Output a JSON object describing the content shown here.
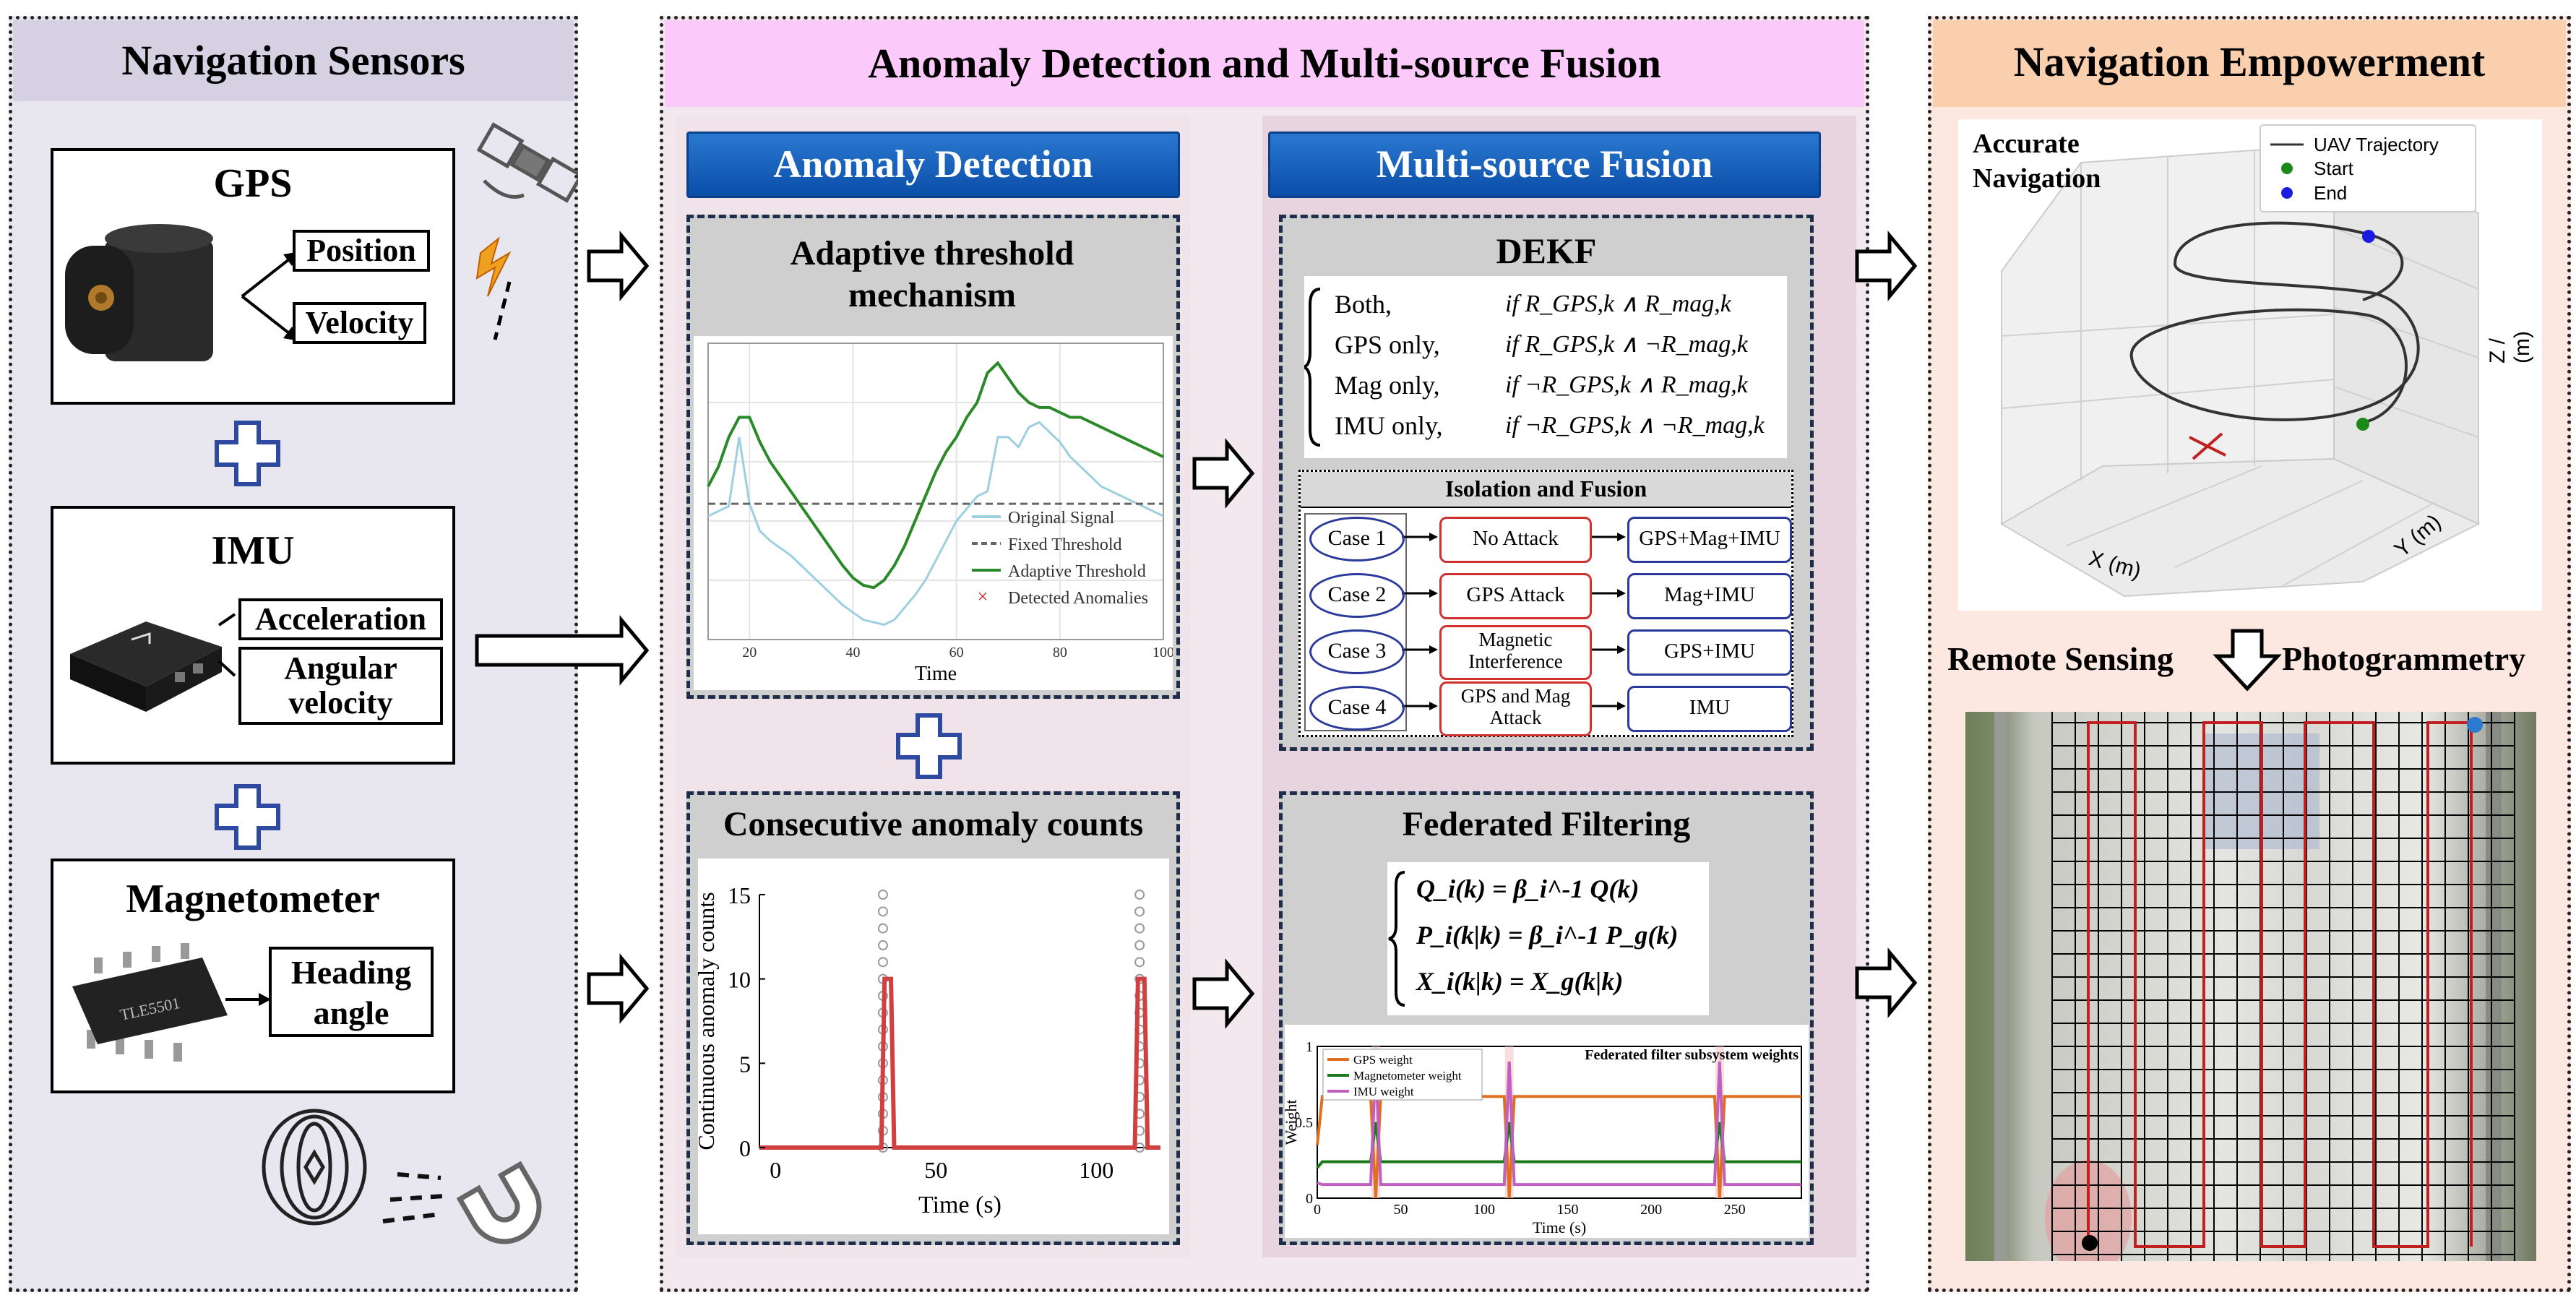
{
  "sensors": {
    "title": "Navigation Sensors",
    "gps": {
      "title": "GPS",
      "outputs": [
        "Position",
        "Velocity"
      ]
    },
    "imu": {
      "title": "IMU",
      "outputs": [
        "Acceleration",
        "Angular velocity"
      ]
    },
    "mag": {
      "title": "Magnetometer",
      "outputs": [
        "Heading angle"
      ],
      "chip_label": "TLE5501"
    }
  },
  "middle": {
    "title": "Anomaly Detection and Multi-source Fusion",
    "anomaly": {
      "header": "Anomaly Detection",
      "adaptive": {
        "title": "Adaptive threshold mechanism",
        "legend": [
          "Original Signal",
          "Fixed Threshold",
          "Adaptive Threshold",
          "Detected Anomalies"
        ],
        "xlabel": "Time",
        "xticks": [
          "20",
          "40",
          "60",
          "80",
          "100"
        ]
      },
      "consecutive": {
        "title": "Consecutive anomaly counts",
        "ylabel": "Continuous anomaly counts",
        "xlabel": "Time (s)",
        "yticks": [
          "0",
          "5",
          "10",
          "15"
        ],
        "xticks": [
          "0",
          "50",
          "100"
        ]
      }
    },
    "fusion": {
      "header": "Multi-source Fusion",
      "dekf": {
        "title": "DEKF",
        "cases": [
          {
            "label": "Both,",
            "cond": "if R_GPS,k ∧ R_mag,k"
          },
          {
            "label": "GPS only,",
            "cond": "if R_GPS,k ∧ ¬R_mag,k"
          },
          {
            "label": "Mag only,",
            "cond": "if ¬R_GPS,k ∧ R_mag,k"
          },
          {
            "label": "IMU only,",
            "cond": "if ¬R_GPS,k ∧ ¬R_mag,k"
          }
        ]
      },
      "isolation": {
        "title": "Isolation and Fusion",
        "rows": [
          {
            "case": "Case 1",
            "attack": "No Attack",
            "sources": "GPS+Mag+IMU"
          },
          {
            "case": "Case 2",
            "attack": "GPS Attack",
            "sources": "Mag+IMU"
          },
          {
            "case": "Case 3",
            "attack": "Magnetic Interference",
            "sources": "GPS+IMU"
          },
          {
            "case": "Case 4",
            "attack": "GPS and Mag Attack",
            "sources": "IMU"
          }
        ]
      },
      "federated": {
        "title": "Federated Filtering",
        "equations": [
          "Q_i(k) = β_i^-1 Q(k)",
          "P_i(k|k) = β_i^-1 P_g(k)",
          "X_i(k|k) = X_g(k|k)"
        ],
        "chart_title": "Federated filter subsystem weights",
        "legend": [
          "GPS weight",
          "Magnetometer weight",
          "IMU weight"
        ],
        "ylabel": "Weight",
        "xlabel": "Time (s)",
        "xticks": [
          "0",
          "50",
          "100",
          "150",
          "200",
          "250"
        ],
        "yticks": [
          "0",
          "0.5",
          "1"
        ]
      }
    }
  },
  "right": {
    "title": "Navigation Empowerment",
    "accurate": "Accurate Navigation",
    "legend": [
      "UAV Trajectory",
      "Start",
      "End"
    ],
    "xaxis": "X (m)",
    "yaxis": "Y (m)",
    "zaxis": "Z / (m)",
    "remote": "Remote Sensing",
    "photo": "Photogrammetry"
  },
  "chart_data": [
    {
      "type": "line",
      "title": "",
      "xlabel": "Time",
      "xlim": [
        12,
        100
      ],
      "series": [
        {
          "name": "Original Signal",
          "x": [
            12,
            14,
            16,
            18,
            20,
            22,
            24,
            26,
            28,
            30,
            32,
            34,
            36,
            38,
            40,
            42,
            44,
            46,
            48,
            50,
            52,
            54,
            56,
            58,
            60,
            62,
            64,
            66,
            68,
            70,
            72,
            74,
            76,
            78,
            80,
            82,
            84,
            86,
            88,
            90,
            92,
            94,
            96,
            98,
            100
          ],
          "y": [
            0.4,
            0.42,
            0.44,
            0.72,
            0.45,
            0.34,
            0.3,
            0.27,
            0.24,
            0.2,
            0.16,
            0.12,
            0.08,
            0.04,
            0.01,
            -0.02,
            -0.03,
            -0.04,
            -0.02,
            0.03,
            0.08,
            0.14,
            0.22,
            0.3,
            0.38,
            0.43,
            0.48,
            0.5,
            0.72,
            0.72,
            0.68,
            0.76,
            0.78,
            0.74,
            0.7,
            0.64,
            0.6,
            0.56,
            0.52,
            0.5,
            0.48,
            0.46,
            0.44,
            0.42,
            0.4
          ]
        },
        {
          "name": "Fixed Threshold",
          "x": [
            12,
            100
          ],
          "y": [
            0.45,
            0.45
          ]
        },
        {
          "name": "Adaptive Threshold",
          "x": [
            12,
            14,
            16,
            18,
            20,
            22,
            24,
            26,
            28,
            30,
            32,
            34,
            36,
            38,
            40,
            42,
            44,
            46,
            48,
            50,
            52,
            54,
            56,
            58,
            60,
            62,
            64,
            66,
            68,
            70,
            72,
            74,
            76,
            78,
            80,
            82,
            84,
            86,
            88,
            90,
            92,
            94,
            96,
            98,
            100
          ],
          "y": [
            0.52,
            0.6,
            0.72,
            0.8,
            0.8,
            0.7,
            0.62,
            0.56,
            0.5,
            0.44,
            0.38,
            0.32,
            0.26,
            0.2,
            0.15,
            0.12,
            0.11,
            0.14,
            0.2,
            0.28,
            0.38,
            0.48,
            0.58,
            0.66,
            0.72,
            0.8,
            0.86,
            0.98,
            1.02,
            0.96,
            0.9,
            0.86,
            0.84,
            0.84,
            0.82,
            0.8,
            0.8,
            0.78,
            0.76,
            0.74,
            0.72,
            0.7,
            0.68,
            0.66,
            0.64
          ]
        }
      ]
    },
    {
      "type": "line",
      "title": "",
      "xlabel": "Time (s)",
      "ylabel": "Continuous anomaly counts",
      "xlim": [
        -5,
        120
      ],
      "ylim": [
        0,
        15
      ],
      "series": [
        {
          "name": "",
          "x": [
            -5,
            33,
            34,
            35,
            36,
            37,
            112,
            113,
            114,
            115,
            116,
            117,
            120
          ],
          "y": [
            0,
            0,
            10,
            10,
            10,
            0,
            0,
            10,
            10,
            10,
            0,
            0,
            0
          ]
        }
      ]
    },
    {
      "type": "line",
      "title": "Federated filter subsystem weights",
      "xlabel": "Time (s)",
      "ylabel": "Weight",
      "xlim": [
        0,
        290
      ],
      "ylim": [
        0,
        1
      ],
      "series": [
        {
          "name": "GPS weight",
          "x": [
            0,
            3,
            32,
            35,
            38,
            112,
            115,
            118,
            238,
            241,
            244,
            290
          ],
          "y": [
            0.35,
            0.67,
            0.67,
            0.0,
            0.67,
            0.67,
            0.0,
            0.67,
            0.67,
            0.0,
            0.67,
            0.67
          ]
        },
        {
          "name": "Magnetometer weight",
          "x": [
            0,
            3,
            32,
            35,
            38,
            112,
            115,
            118,
            238,
            241,
            244,
            290
          ],
          "y": [
            0.2,
            0.24,
            0.24,
            0.5,
            0.24,
            0.24,
            0.5,
            0.24,
            0.24,
            0.5,
            0.24,
            0.24
          ]
        },
        {
          "name": "IMU weight",
          "x": [
            0,
            3,
            32,
            35,
            38,
            112,
            115,
            118,
            238,
            241,
            244,
            290
          ],
          "y": [
            0.1,
            0.09,
            0.09,
            0.9,
            0.09,
            0.09,
            0.9,
            0.09,
            0.09,
            0.9,
            0.09,
            0.09
          ]
        }
      ]
    }
  ]
}
